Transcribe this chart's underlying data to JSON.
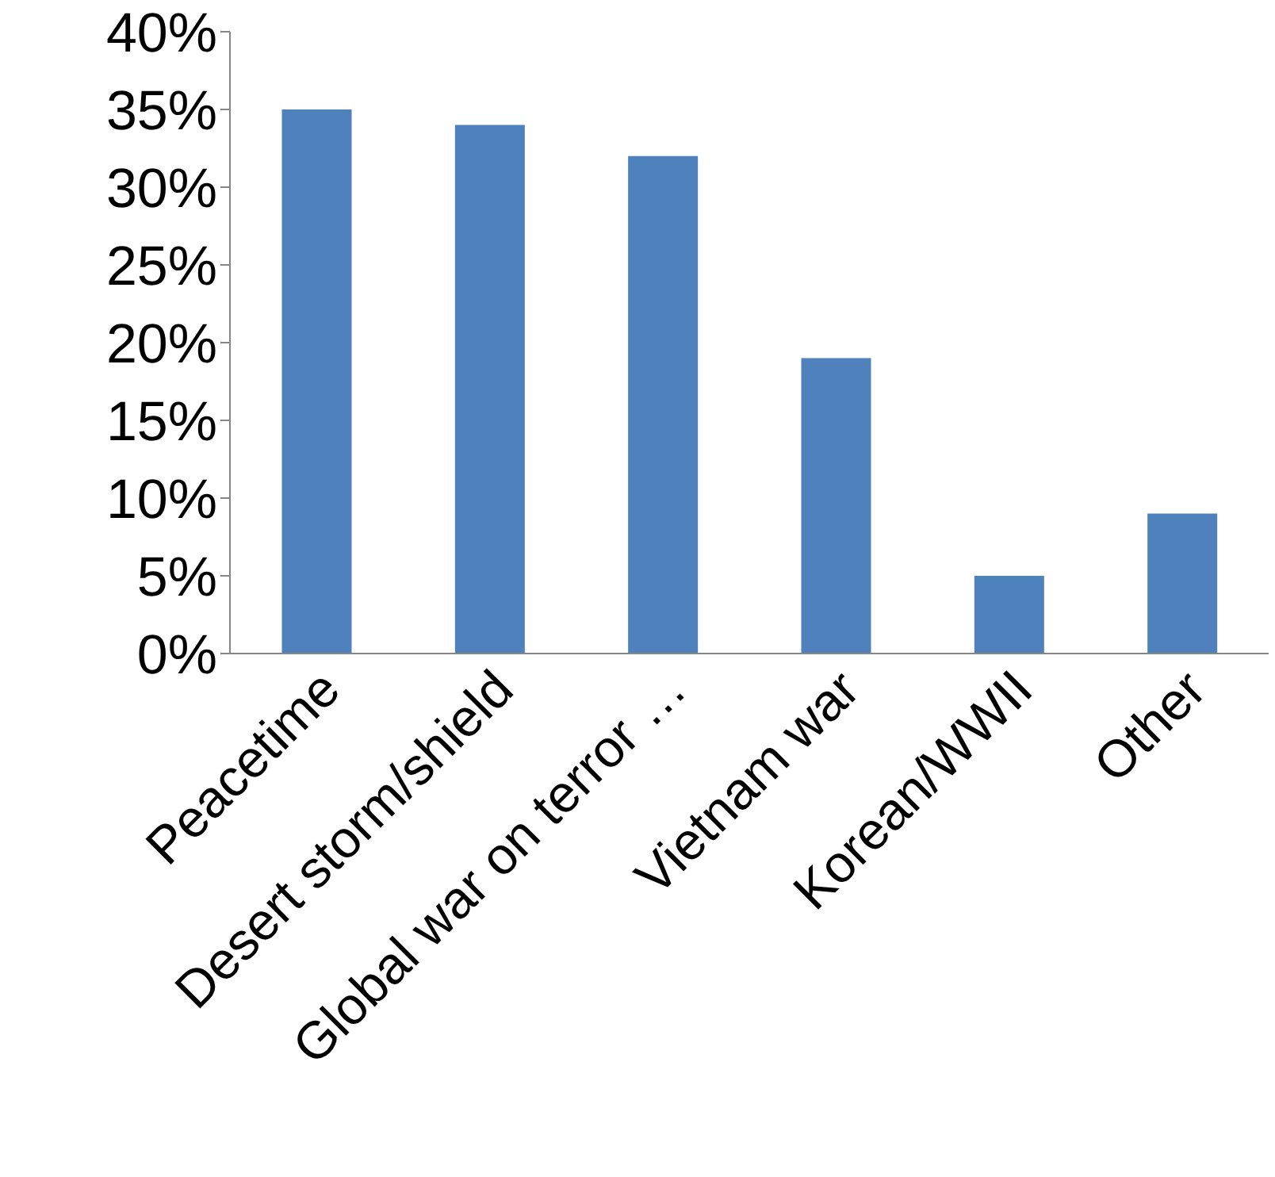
{
  "chart_data": {
    "type": "bar",
    "categories": [
      "Peacetime",
      "Desert storm/shield",
      "Global war on terror …",
      "Vietnam war",
      "Korean/WWII",
      "Other"
    ],
    "values": [
      35,
      34,
      32,
      19,
      5,
      9
    ],
    "color": "#4f81bd",
    "ylim": [
      0,
      40
    ],
    "yticks": [
      {
        "value": 0,
        "label": "0%"
      },
      {
        "value": 5,
        "label": "5%"
      },
      {
        "value": 10,
        "label": "10%"
      },
      {
        "value": 15,
        "label": "15%"
      },
      {
        "value": 20,
        "label": "20%"
      },
      {
        "value": 25,
        "label": "25%"
      },
      {
        "value": 30,
        "label": "30%"
      },
      {
        "value": 35,
        "label": "35%"
      },
      {
        "value": 40,
        "label": "40%"
      }
    ]
  }
}
